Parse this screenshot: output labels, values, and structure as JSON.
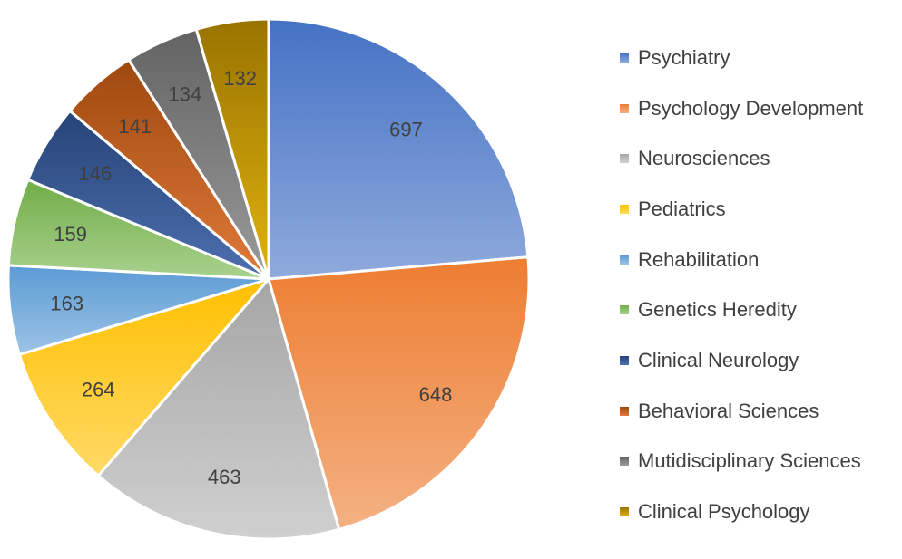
{
  "chart_data": {
    "type": "pie",
    "title": "",
    "categories": [
      "Psychiatry",
      "Psychology Development",
      "Neurosciences",
      "Pediatrics",
      "Rehabilitation",
      "Genetics Heredity",
      "Clinical Neurology",
      "Behavioral Sciences",
      "Mutidisciplinary Sciences",
      "Clinical Psychology"
    ],
    "values": [
      697,
      648,
      463,
      264,
      163,
      159,
      146,
      141,
      134,
      132
    ],
    "colors": [
      [
        "#4472c4",
        "#8faadc"
      ],
      [
        "#ed7d31",
        "#f4b183"
      ],
      [
        "#a5a5a5",
        "#d0d0d0"
      ],
      [
        "#ffc000",
        "#ffd966"
      ],
      [
        "#5b9bd5",
        "#9dc3e6"
      ],
      [
        "#70ad47",
        "#a9d18e"
      ],
      [
        "#264478",
        "#4e6fb0"
      ],
      [
        "#9e480e",
        "#e07a3a"
      ],
      [
        "#636363",
        "#9a9a9a"
      ],
      [
        "#997300",
        "#e0b20e"
      ]
    ],
    "legend_position": "right",
    "start_angle_deg": 0,
    "direction": "clockwise"
  }
}
